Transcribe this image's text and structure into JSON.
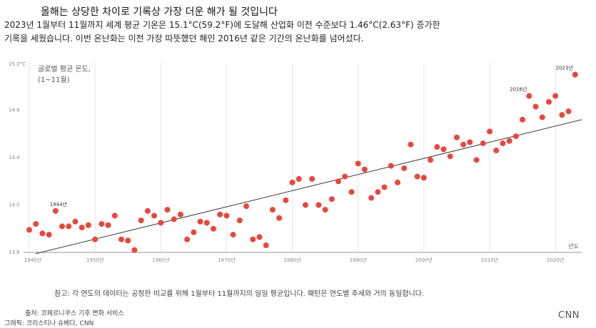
{
  "header": {
    "title": "올해는 상당한 차이로 기록상 가장 더운 해가 될 것입니다",
    "desc_line1": "2023년 1월부터 11월까지 세계 평균 기온은 15.1°C(59.2°F)에 도달해 산업화 이전 수준보다 1.46°C(2.63°F) 증가한",
    "desc_line2": "기록을 세웠습니다. 이번 온난화는 이전 가장 따뜻했던 해인 2016년 같은 기간의 온난화를 넘어섰다."
  },
  "chart_data": {
    "type": "scatter",
    "ylabel_line1": "글로벌 평균 온도,",
    "ylabel_line2": "(1~11월)",
    "xlabel": "년도",
    "xlim": [
      1940,
      2024
    ],
    "ylim": [
      13.6,
      15.2
    ],
    "y_ticks": [
      "13.6",
      "14.0",
      "14.4",
      "14.8",
      "15.2°C"
    ],
    "y_tick_values": [
      13.6,
      14.0,
      14.4,
      14.8,
      15.2
    ],
    "x_ticks": [
      "1940년",
      "1950년",
      "1960년",
      "1970년",
      "1980년",
      "1990년",
      "2000년",
      "2010년",
      "2020년"
    ],
    "x_tick_values": [
      1940,
      1950,
      1960,
      1970,
      1980,
      1990,
      2000,
      2010,
      2020
    ],
    "grid": "vertical",
    "point_color": "#e8473d",
    "trend_color": "#222222",
    "trend": {
      "x": [
        1941,
        2024
      ],
      "y": [
        13.59,
        14.72
      ]
    },
    "annotations": [
      {
        "text": "1944년",
        "x": 1944,
        "y": 13.95
      },
      {
        "text": "2016년",
        "x": 2016,
        "y": 14.92
      },
      {
        "text": "2023년",
        "x": 2023,
        "y": 15.1
      }
    ],
    "x": [
      1940,
      1941,
      1942,
      1943,
      1944,
      1945,
      1946,
      1947,
      1948,
      1949,
      1950,
      1951,
      1952,
      1953,
      1954,
      1955,
      1956,
      1957,
      1958,
      1959,
      1960,
      1961,
      1962,
      1963,
      1964,
      1965,
      1966,
      1967,
      1968,
      1969,
      1970,
      1971,
      1972,
      1973,
      1974,
      1975,
      1976,
      1977,
      1978,
      1979,
      1980,
      1981,
      1982,
      1983,
      1984,
      1985,
      1986,
      1987,
      1988,
      1989,
      1990,
      1991,
      1992,
      1993,
      1994,
      1995,
      1996,
      1997,
      1998,
      1999,
      2000,
      2001,
      2002,
      2003,
      2004,
      2005,
      2006,
      2007,
      2008,
      2009,
      2010,
      2011,
      2012,
      2013,
      2014,
      2015,
      2016,
      2017,
      2018,
      2019,
      2020,
      2021,
      2022,
      2023
    ],
    "y": [
      13.79,
      13.84,
      13.76,
      13.75,
      13.95,
      13.82,
      13.82,
      13.86,
      13.81,
      13.83,
      13.71,
      13.84,
      13.83,
      13.91,
      13.71,
      13.7,
      13.62,
      13.87,
      13.95,
      13.91,
      13.85,
      13.96,
      13.88,
      13.92,
      13.71,
      13.77,
      13.86,
      13.85,
      13.8,
      13.92,
      13.91,
      13.75,
      13.87,
      13.99,
      13.71,
      13.73,
      13.66,
      13.96,
      13.89,
      14.04,
      14.19,
      14.22,
      14.0,
      14.22,
      14.0,
      13.96,
      14.05,
      14.2,
      14.24,
      14.11,
      14.35,
      14.3,
      14.06,
      14.11,
      14.15,
      14.33,
      14.19,
      14.31,
      14.51,
      14.24,
      14.23,
      14.38,
      14.49,
      14.47,
      14.41,
      14.57,
      14.51,
      14.53,
      14.38,
      14.52,
      14.62,
      14.46,
      14.52,
      14.54,
      14.58,
      14.72,
      14.92,
      14.83,
      14.74,
      14.87,
      14.92,
      14.76,
      14.79,
      15.1
    ]
  },
  "footer": {
    "note": "참고: 각 연도의 데이터는 공정한 비교를 위해 1월부터 11월까지의 일일 평균입니다. 패턴은 연도별 추세와 거의 동일합니다.",
    "source": "출처: 코페르니쿠스 기후 변화 서비스",
    "credit": "그래픽: 크리스티나 슈베다, CNN",
    "logo": "CNN"
  }
}
